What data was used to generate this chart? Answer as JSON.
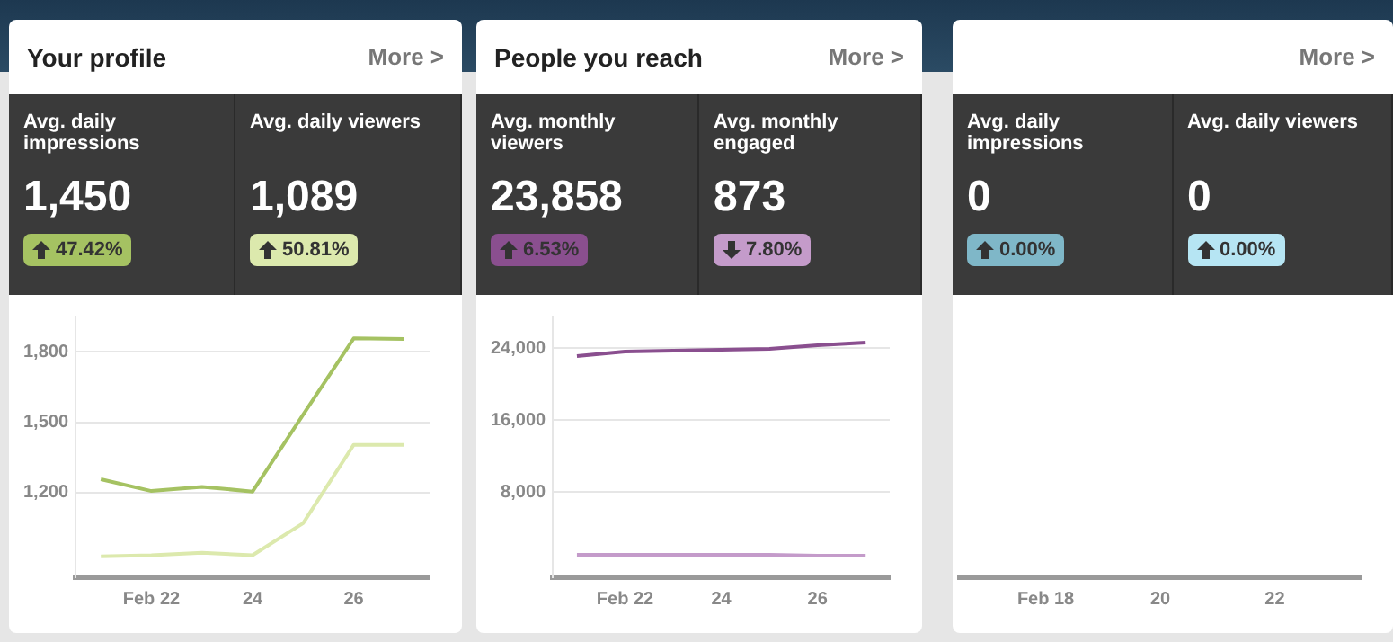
{
  "chart_data": [
    {
      "type": "line",
      "title": "Your profile",
      "annotations": [
        "More >",
        "Avg. daily impressions",
        "1,450",
        "47.42%",
        "Avg. daily viewers",
        "1,089",
        "50.81%"
      ],
      "categories": [
        null,
        "Feb 22",
        null,
        "24",
        null,
        "26",
        null
      ],
      "series": [
        {
          "color": "#a5c262",
          "values": [
            1257,
            1207,
            1225,
            1205,
            1532,
            1857,
            1854
          ]
        },
        {
          "color": "#dce9ad",
          "values": [
            929,
            934,
            944,
            934,
            1070,
            1404,
            1404
          ]
        }
      ],
      "ylim": [
        840,
        1950
      ],
      "yticks": [
        {
          "value": 1200,
          "label": "1,200"
        },
        {
          "value": 1500,
          "label": "1,500"
        },
        {
          "value": 1800,
          "label": "1,800"
        }
      ],
      "grid": "y",
      "legend": false,
      "marker": "none",
      "line_style": "solid"
    },
    {
      "type": "line",
      "title": "People you reach",
      "annotations": [
        "More >",
        "Avg. monthly viewers",
        "23,858",
        "6.53%",
        "Avg. monthly engaged",
        "873",
        "7.80%"
      ],
      "categories": [
        null,
        "Feb 22",
        null,
        "24",
        null,
        "26",
        null
      ],
      "series": [
        {
          "color": "#8a4f8f",
          "values": [
            23100,
            23600,
            23700,
            23800,
            23900,
            24300,
            24600
          ]
        },
        {
          "color": "#c49bca",
          "values": [
            1000,
            1000,
            1000,
            1000,
            1000,
            900,
            900
          ]
        }
      ],
      "ylim": [
        -1500,
        27500
      ],
      "yticks": [
        {
          "value": 8000,
          "label": "8,000"
        },
        {
          "value": 16000,
          "label": "16,000"
        },
        {
          "value": 24000,
          "label": "24,000"
        }
      ],
      "grid": "y",
      "legend": false,
      "marker": "none",
      "line_style": "solid"
    },
    {
      "type": "other",
      "annotations": [
        "More >",
        "Avg. daily impressions",
        "0",
        "0.00%",
        "Avg. daily viewers",
        "0",
        "0.00%"
      ],
      "categories": [
        null,
        "Feb 18",
        null,
        "20",
        null,
        "22",
        null
      ],
      "legend": false
    }
  ]
}
